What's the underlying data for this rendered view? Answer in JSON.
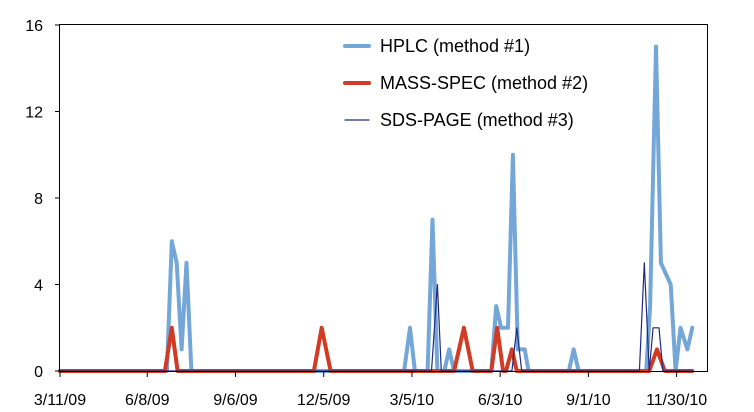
{
  "chart_data": {
    "type": "line",
    "x_tick_labels": [
      "3/11/09",
      "6/8/09",
      "9/6/09",
      "12/5/09",
      "3/5/10",
      "6/3/10",
      "9/1/10",
      "11/30/10"
    ],
    "y_tick_labels": [
      "0",
      "4",
      "8",
      "12",
      "16"
    ],
    "ylim": [
      0,
      16
    ],
    "x_date_ticks": [
      "2009-03-11",
      "2009-06-08",
      "2009-09-06",
      "2009-12-05",
      "2010-03-05",
      "2010-06-03",
      "2010-09-01",
      "2010-11-30"
    ],
    "xlim_dates": [
      "2009-03-11",
      "2010-12-31"
    ],
    "legend_position": "top-right",
    "grid": false,
    "series": [
      {
        "name": "HPLC (method #1)",
        "color": "#74a7d8",
        "points": [
          [
            "2009-03-11",
            0
          ],
          [
            "2009-06-28",
            0
          ],
          [
            "2009-07-03",
            6
          ],
          [
            "2009-07-08",
            5
          ],
          [
            "2009-07-13",
            1
          ],
          [
            "2009-07-18",
            5
          ],
          [
            "2009-07-23",
            0
          ],
          [
            "2010-02-25",
            0
          ],
          [
            "2010-03-03",
            2
          ],
          [
            "2010-03-08",
            0
          ],
          [
            "2010-03-21",
            0
          ],
          [
            "2010-03-26",
            7
          ],
          [
            "2010-03-31",
            0
          ],
          [
            "2010-04-07",
            0
          ],
          [
            "2010-04-12",
            1
          ],
          [
            "2010-04-17",
            0
          ],
          [
            "2010-05-25",
            0
          ],
          [
            "2010-05-30",
            3
          ],
          [
            "2010-06-04",
            2
          ],
          [
            "2010-06-11",
            2
          ],
          [
            "2010-06-16",
            10
          ],
          [
            "2010-06-21",
            1
          ],
          [
            "2010-06-28",
            1
          ],
          [
            "2010-07-02",
            0
          ],
          [
            "2010-08-12",
            0
          ],
          [
            "2010-08-17",
            1
          ],
          [
            "2010-08-22",
            0
          ],
          [
            "2010-10-30",
            0
          ],
          [
            "2010-11-03",
            3
          ],
          [
            "2010-11-09",
            15
          ],
          [
            "2010-11-14",
            5
          ],
          [
            "2010-11-24",
            4
          ],
          [
            "2010-11-29",
            0
          ],
          [
            "2010-12-04",
            2
          ],
          [
            "2010-12-11",
            1
          ],
          [
            "2010-12-16",
            2
          ]
        ]
      },
      {
        "name": "MASS-SPEC (method #2)",
        "color": "#d13b24",
        "points": [
          [
            "2009-03-11",
            0
          ],
          [
            "2009-06-26",
            0
          ],
          [
            "2009-07-03",
            2
          ],
          [
            "2009-07-09",
            0
          ],
          [
            "2009-11-25",
            0
          ],
          [
            "2009-12-03",
            2
          ],
          [
            "2009-12-12",
            0
          ],
          [
            "2010-04-17",
            0
          ],
          [
            "2010-04-27",
            2
          ],
          [
            "2010-05-06",
            0
          ],
          [
            "2010-05-25",
            0
          ],
          [
            "2010-05-31",
            2
          ],
          [
            "2010-06-06",
            0
          ],
          [
            "2010-06-09",
            0
          ],
          [
            "2010-06-15",
            1
          ],
          [
            "2010-06-20",
            0
          ],
          [
            "2010-11-02",
            0
          ],
          [
            "2010-11-10",
            1
          ],
          [
            "2010-11-18",
            0
          ],
          [
            "2010-12-16",
            0
          ]
        ]
      },
      {
        "name": "SDS-PAGE (method #3)",
        "color": "#1f2a80",
        "points": [
          [
            "2009-03-11",
            0
          ],
          [
            "2010-03-25",
            0
          ],
          [
            "2010-03-31",
            4
          ],
          [
            "2010-04-04",
            0
          ],
          [
            "2010-06-15",
            0
          ],
          [
            "2010-06-20",
            2
          ],
          [
            "2010-06-25",
            0
          ],
          [
            "2010-10-23",
            0
          ],
          [
            "2010-10-28",
            5
          ],
          [
            "2010-11-02",
            0
          ],
          [
            "2010-11-06",
            2
          ],
          [
            "2010-11-12",
            2
          ],
          [
            "2010-11-16",
            0
          ],
          [
            "2010-12-16",
            0
          ]
        ]
      }
    ]
  }
}
